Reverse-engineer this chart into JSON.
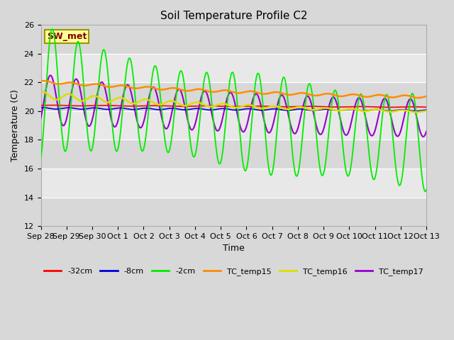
{
  "title": "Soil Temperature Profile C2",
  "xlabel": "Time",
  "ylabel": "Temperature (C)",
  "ylim": [
    12,
    26
  ],
  "annotation_text": "SW_met",
  "annotation_bg": "#FFFF99",
  "annotation_border": "#999900",
  "annotation_text_color": "#880000",
  "series": {
    "-32cm": {
      "color": "#FF0000",
      "lw": 1.2
    },
    "-8cm": {
      "color": "#0000DD",
      "lw": 1.2
    },
    "-2cm": {
      "color": "#00EE00",
      "lw": 1.3
    },
    "TC_temp15": {
      "color": "#FF8C00",
      "lw": 1.8
    },
    "TC_temp16": {
      "color": "#DDDD00",
      "lw": 1.8
    },
    "TC_temp17": {
      "color": "#9900CC",
      "lw": 1.5
    }
  },
  "tick_labels": [
    "Sep 28",
    "Sep 29",
    "Sep 30",
    "Oct 1",
    "Oct 2",
    "Oct 3",
    "Oct 4",
    "Oct 5",
    "Oct 6",
    "Oct 7",
    "Oct 8",
    "Oct 9",
    "Oct 10",
    "Oct 11",
    "Oct 12",
    "Oct 13"
  ],
  "yticks": [
    12,
    14,
    16,
    18,
    20,
    22,
    24,
    26
  ],
  "figsize": [
    6.4,
    4.8
  ],
  "dpi": 100
}
